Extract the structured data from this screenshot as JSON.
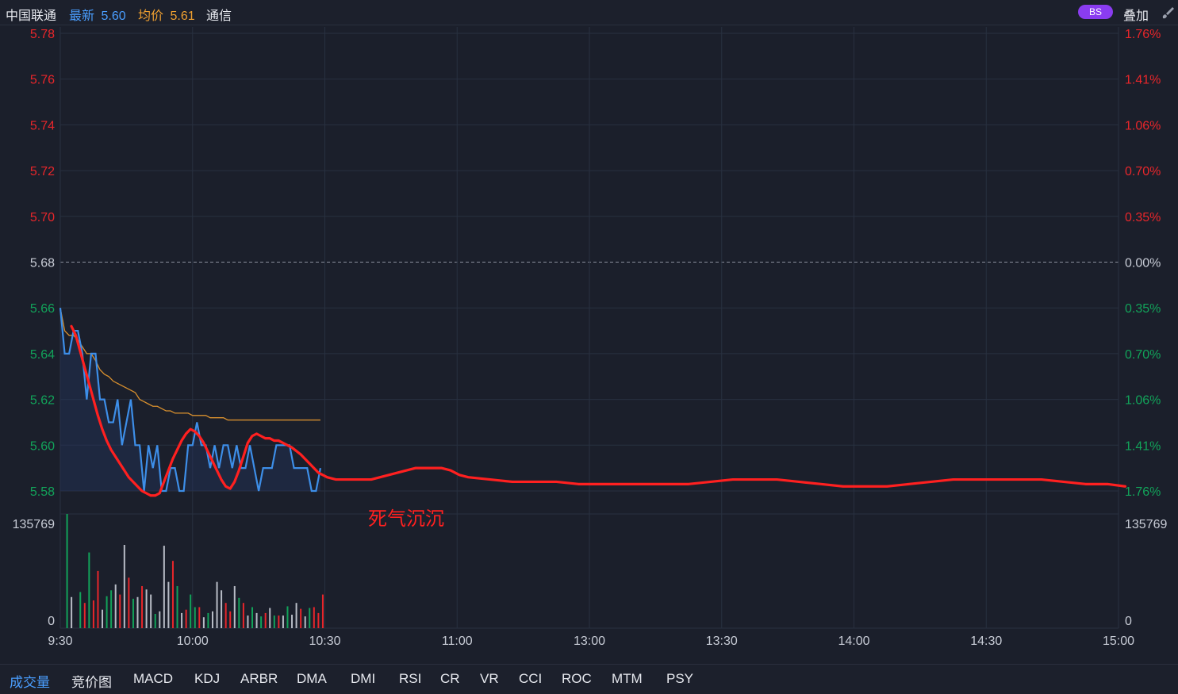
{
  "header": {
    "stock_name": "中国联通",
    "last_label": "最新",
    "last_value": "5.60",
    "avg_label": "均价",
    "avg_value": "5.61",
    "industry": "通信",
    "bs_badge": "BS",
    "overlay_label": "叠加",
    "brush_icon": "brush-icon"
  },
  "tabs": [
    "成交量",
    "竞价图",
    "MACD",
    "KDJ",
    "ARBR",
    "DMA",
    "DMI",
    "RSI",
    "CR",
    "VR",
    "CCI",
    "ROC",
    "MTM",
    "PSY"
  ],
  "active_tab": "成交量",
  "colors": {
    "up": "#e8262b",
    "down": "#12a35a",
    "price_line": "#3d8ee8",
    "avg_line": "#d9902e",
    "annotation": "#ff2020",
    "neutral_bar": "#b8bcc6"
  },
  "chart_data": {
    "type": "line",
    "price_axis_labels": [
      "5.78",
      "5.76",
      "5.74",
      "5.72",
      "5.70",
      "5.68",
      "5.66",
      "5.64",
      "5.62",
      "5.60",
      "5.58"
    ],
    "percent_axis_labels": [
      "1.76%",
      "1.41%",
      "1.06%",
      "0.70%",
      "0.35%",
      "0.00%",
      "0.35%",
      "0.70%",
      "1.06%",
      "1.41%",
      "1.76%"
    ],
    "ylim": [
      5.58,
      5.78
    ],
    "preclose": 5.68,
    "volume_axis_labels": [
      "135769",
      "0"
    ],
    "volume_max": 135769,
    "x_tick_labels": [
      "9:30",
      "10:00",
      "10:30",
      "11:00",
      "13:00",
      "13:30",
      "14:00",
      "14:30",
      "15:00"
    ],
    "series": [
      {
        "t": [
          0,
          1,
          2,
          3,
          4,
          5,
          6,
          7,
          8,
          9,
          10,
          11,
          12,
          13,
          14,
          15,
          16,
          17,
          18,
          19,
          20,
          21,
          22,
          23,
          24,
          25,
          26,
          27,
          28,
          29,
          30,
          31,
          32,
          33,
          34,
          35,
          36,
          37,
          38,
          39,
          40,
          41,
          42,
          43,
          44,
          45,
          46,
          47,
          48,
          49,
          50,
          51,
          52,
          53,
          54,
          55,
          56,
          57,
          58,
          59
        ],
        "price": [
          5.66,
          5.64,
          5.64,
          5.65,
          5.65,
          5.64,
          5.62,
          5.64,
          5.64,
          5.62,
          5.62,
          5.61,
          5.61,
          5.62,
          5.6,
          5.61,
          5.62,
          5.6,
          5.6,
          5.58,
          5.6,
          5.59,
          5.6,
          5.58,
          5.58,
          5.59,
          5.59,
          5.58,
          5.58,
          5.6,
          5.6,
          5.61,
          5.6,
          5.6,
          5.59,
          5.6,
          5.59,
          5.6,
          5.6,
          5.59,
          5.6,
          5.59,
          5.59,
          5.6,
          5.59,
          5.58,
          5.59,
          5.59,
          5.59,
          5.6,
          5.6,
          5.6,
          5.6,
          5.59,
          5.59,
          5.59,
          5.59,
          5.58,
          5.58,
          5.59
        ],
        "avg": [
          5.66,
          5.65,
          5.648,
          5.648,
          5.646,
          5.643,
          5.64,
          5.64,
          5.637,
          5.633,
          5.631,
          5.63,
          5.628,
          5.627,
          5.626,
          5.625,
          5.624,
          5.623,
          5.62,
          5.619,
          5.618,
          5.617,
          5.617,
          5.616,
          5.615,
          5.615,
          5.614,
          5.614,
          5.614,
          5.614,
          5.613,
          5.613,
          5.613,
          5.613,
          5.612,
          5.612,
          5.612,
          5.612,
          5.611,
          5.611,
          5.611,
          5.611,
          5.611,
          5.611,
          5.611,
          5.611,
          5.611,
          5.611,
          5.611,
          5.611,
          5.611,
          5.611,
          5.611,
          5.611,
          5.611,
          5.611,
          5.611,
          5.611,
          5.611,
          5.611
        ]
      }
    ],
    "volume": {
      "t": [
        1,
        2,
        4,
        5,
        6,
        7,
        8,
        9,
        10,
        11,
        12,
        13,
        14,
        15,
        16,
        17,
        18,
        19,
        20,
        21,
        22,
        23,
        24,
        25,
        26,
        27,
        28,
        29,
        30,
        31,
        32,
        33,
        34,
        35,
        36,
        37,
        38,
        39,
        40,
        41,
        42,
        43,
        44,
        45,
        46,
        47,
        48,
        49,
        50,
        51,
        52,
        53,
        54,
        55,
        56,
        57,
        58,
        59
      ],
      "values": [
        135769,
        37000,
        43000,
        30000,
        90000,
        33000,
        68000,
        22000,
        38000,
        45000,
        52000,
        40000,
        99000,
        60000,
        35000,
        37000,
        50000,
        46000,
        40000,
        17000,
        20000,
        98000,
        55000,
        80000,
        50000,
        18000,
        22000,
        40000,
        25000,
        25000,
        13000,
        18000,
        20000,
        55000,
        45000,
        30000,
        20000,
        50000,
        36000,
        30000,
        15000,
        25000,
        18000,
        14000,
        18000,
        24000,
        15000,
        15000,
        15000,
        26000,
        16000,
        30000,
        23000,
        14000,
        24000,
        25000,
        18000,
        40000
      ],
      "dir": [
        "d",
        "n",
        "d",
        "u",
        "d",
        "u",
        "u",
        "n",
        "d",
        "d",
        "n",
        "u",
        "n",
        "u",
        "d",
        "n",
        "u",
        "n",
        "n",
        "d",
        "n",
        "n",
        "n",
        "u",
        "d",
        "n",
        "u",
        "d",
        "d",
        "u",
        "n",
        "d",
        "n",
        "n",
        "n",
        "u",
        "u",
        "n",
        "d",
        "u",
        "n",
        "d",
        "n",
        "d",
        "u",
        "n",
        "d",
        "u",
        "n",
        "d",
        "n",
        "n",
        "u",
        "n",
        "d",
        "u",
        "u",
        "u"
      ]
    },
    "hand_drawn_annotation": {
      "label": "死气沉沉",
      "t": [
        0,
        1,
        2,
        3,
        4,
        5,
        6,
        7,
        8,
        9,
        10,
        11,
        12,
        13,
        14,
        15,
        16,
        17,
        18,
        19,
        20,
        21,
        22,
        23,
        24,
        25,
        26,
        27,
        28,
        29,
        30,
        31,
        32,
        33,
        34,
        35,
        36,
        37,
        38,
        39,
        40,
        41,
        42,
        43,
        44,
        45,
        46,
        47,
        48,
        49,
        50,
        52,
        54,
        56,
        58,
        60,
        62,
        64,
        66,
        68,
        70,
        72,
        74,
        76,
        78,
        80,
        82,
        84,
        86,
        88,
        90,
        95,
        100,
        105,
        110,
        115,
        120,
        125,
        130,
        135,
        140,
        145,
        150,
        155,
        160,
        165,
        170,
        175,
        180,
        185,
        190,
        195,
        200,
        205,
        210,
        215,
        220,
        225,
        230,
        235,
        239
      ],
      "values": [
        5.652,
        5.648,
        5.641,
        5.634,
        5.627,
        5.62,
        5.613,
        5.607,
        5.602,
        5.598,
        5.595,
        5.592,
        5.589,
        5.586,
        5.584,
        5.582,
        5.58,
        5.579,
        5.578,
        5.578,
        5.579,
        5.584,
        5.589,
        5.594,
        5.598,
        5.602,
        5.605,
        5.607,
        5.606,
        5.604,
        5.601,
        5.597,
        5.593,
        5.589,
        5.585,
        5.582,
        5.581,
        5.584,
        5.589,
        5.595,
        5.601,
        5.604,
        5.605,
        5.604,
        5.603,
        5.603,
        5.602,
        5.602,
        5.601,
        5.6,
        5.599,
        5.596,
        5.592,
        5.588,
        5.586,
        5.585,
        5.585,
        5.585,
        5.585,
        5.585,
        5.586,
        5.587,
        5.588,
        5.589,
        5.59,
        5.59,
        5.59,
        5.59,
        5.589,
        5.587,
        5.586,
        5.585,
        5.584,
        5.584,
        5.584,
        5.583,
        5.583,
        5.583,
        5.583,
        5.583,
        5.583,
        5.584,
        5.585,
        5.585,
        5.585,
        5.584,
        5.583,
        5.582,
        5.582,
        5.582,
        5.583,
        5.584,
        5.585,
        5.585,
        5.585,
        5.585,
        5.585,
        5.584,
        5.583,
        5.583,
        5.582
      ]
    }
  }
}
